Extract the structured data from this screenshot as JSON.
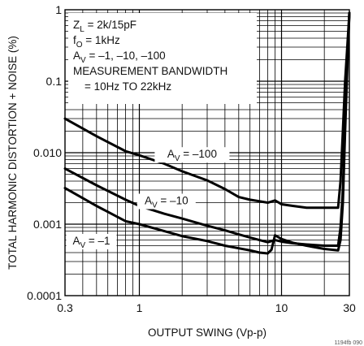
{
  "chart_data": {
    "type": "line",
    "xlabel": "OUTPUT SWING (Vp-p)",
    "ylabel": "TOTAL HARMONIC DISTORTION + NOISE (%)",
    "x_scale": "log",
    "y_scale": "log",
    "xlim": [
      0.3,
      30
    ],
    "ylim": [
      0.0001,
      1
    ],
    "grid": true,
    "x_ticks": [
      {
        "value": 0.3,
        "label": "0.3"
      },
      {
        "value": 1,
        "label": "1"
      },
      {
        "value": 10,
        "label": "10"
      },
      {
        "value": 30,
        "label": "30"
      }
    ],
    "y_ticks": [
      {
        "value": 1,
        "label": "1"
      },
      {
        "value": 0.1,
        "label": "0.1"
      },
      {
        "value": 0.01,
        "label": "0.010"
      },
      {
        "value": 0.001,
        "label": "0.001"
      },
      {
        "value": 0.0001,
        "label": "0.0001"
      }
    ],
    "conditions": [
      {
        "id": "zl",
        "text": "Z",
        "sub": "L",
        "rest": " = 2k/15pF"
      },
      {
        "id": "f0",
        "text": "f",
        "sub": "O",
        "rest": " = 1kHz"
      },
      {
        "id": "av",
        "text": "A",
        "sub": "V",
        "rest": " = –1, –10, –100"
      },
      {
        "id": "mb",
        "text": "MEASUREMENT BANDWIDTH",
        "sub": "",
        "rest": ""
      },
      {
        "id": "bw",
        "text": "= 10Hz TO 22kHz",
        "sub": "",
        "rest": ""
      }
    ],
    "series": [
      {
        "label_main": "A",
        "label_sub": "V",
        "label_rest": " = –100",
        "points": [
          [
            0.3,
            0.03
          ],
          [
            0.5,
            0.017
          ],
          [
            0.8,
            0.0105
          ],
          [
            1,
            0.0092
          ],
          [
            1.5,
            0.007
          ],
          [
            2,
            0.0055
          ],
          [
            3,
            0.0041
          ],
          [
            4,
            0.0031
          ],
          [
            5,
            0.0024
          ],
          [
            6,
            0.0022
          ],
          [
            8,
            0.002
          ],
          [
            9,
            0.00215
          ],
          [
            10,
            0.0019
          ],
          [
            12,
            0.0018
          ],
          [
            15,
            0.0017
          ],
          [
            20,
            0.0017
          ],
          [
            25,
            0.0017
          ],
          [
            26,
            0.004
          ],
          [
            27,
            0.02
          ],
          [
            28,
            0.1
          ],
          [
            29,
            0.3
          ],
          [
            30,
            0.9
          ]
        ]
      },
      {
        "label_main": "A",
        "label_sub": "V",
        "label_rest": " = –10",
        "points": [
          [
            0.3,
            0.006
          ],
          [
            0.5,
            0.0035
          ],
          [
            0.8,
            0.0022
          ],
          [
            1,
            0.0018
          ],
          [
            1.5,
            0.0014
          ],
          [
            2,
            0.0012
          ],
          [
            3,
            0.00095
          ],
          [
            4,
            0.00082
          ],
          [
            5,
            0.00072
          ],
          [
            6,
            0.00065
          ],
          [
            7,
            0.0006
          ],
          [
            8,
            0.00056
          ],
          [
            9,
            0.0006
          ],
          [
            10,
            0.00057
          ],
          [
            12,
            0.00054
          ],
          [
            15,
            0.00052
          ],
          [
            20,
            0.0005
          ],
          [
            25,
            0.0005
          ],
          [
            26,
            0.0009
          ],
          [
            27,
            0.003
          ],
          [
            28,
            0.03
          ],
          [
            29,
            0.2
          ],
          [
            30,
            0.9
          ]
        ]
      },
      {
        "label_main": "A",
        "label_sub": "V",
        "label_rest": " = –1",
        "points": [
          [
            0.3,
            0.0032
          ],
          [
            0.5,
            0.0018
          ],
          [
            0.8,
            0.0011
          ],
          [
            1,
            0.001
          ],
          [
            1.5,
            0.0008
          ],
          [
            2,
            0.00068
          ],
          [
            3,
            0.00058
          ],
          [
            4,
            0.0005
          ],
          [
            5,
            0.00046
          ],
          [
            6,
            0.00043
          ],
          [
            7,
            0.0004
          ],
          [
            8,
            0.00039
          ],
          [
            8.5,
            0.00044
          ],
          [
            9,
            0.0007
          ],
          [
            10,
            0.00062
          ],
          [
            12,
            0.00055
          ],
          [
            15,
            0.0005
          ],
          [
            20,
            0.00045
          ],
          [
            25,
            0.00043
          ],
          [
            26,
            0.0006
          ],
          [
            27,
            0.002
          ],
          [
            28,
            0.02
          ],
          [
            29,
            0.15
          ],
          [
            30,
            0.9
          ]
        ]
      }
    ],
    "figure_code": "1194fb 090"
  }
}
